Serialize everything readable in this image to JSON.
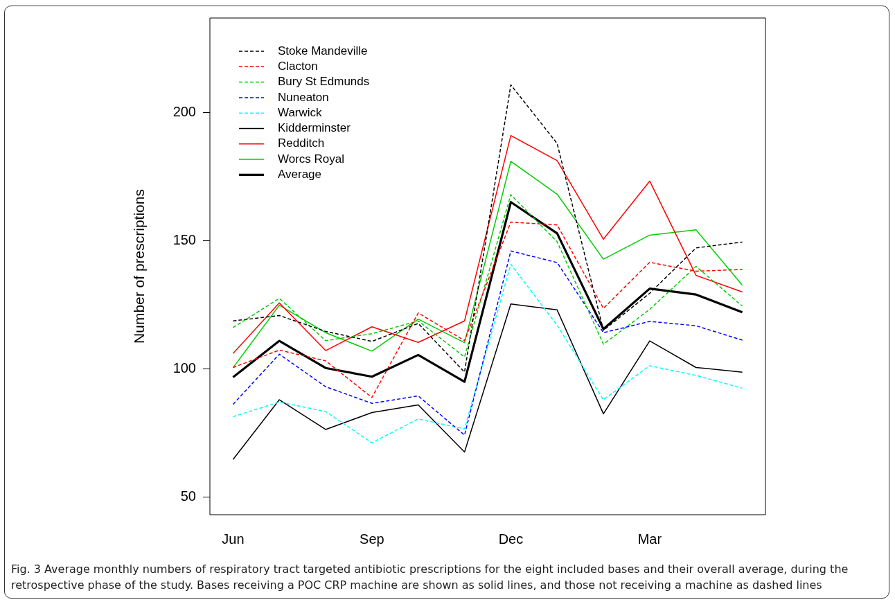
{
  "chart_data": {
    "type": "line",
    "ylabel": "Number of prescriptions",
    "categories": [
      "Jun",
      null,
      null,
      "Sep",
      null,
      null,
      "Dec",
      null,
      null,
      "Mar",
      null,
      null
    ],
    "ylim": [
      43,
      237
    ],
    "yticks": [
      50,
      100,
      150,
      200
    ],
    "grid": false,
    "legend": "top left",
    "marker": "none",
    "series": [
      {
        "name": "Stoke Mandeville",
        "color": "#000000",
        "line_style": "dashed",
        "values": [
          118.7,
          120.8,
          114.6,
          110.7,
          117.7,
          98.7,
          210.9,
          188,
          115,
          129.5,
          147.2,
          149.5
        ]
      },
      {
        "name": "Clacton",
        "color": "#ff0000",
        "line_style": "dashed",
        "values": [
          100.5,
          107.3,
          103.1,
          88.8,
          121.8,
          111,
          157.3,
          156.2,
          123.6,
          141.6,
          138.1,
          138.8
        ]
      },
      {
        "name": "Bury St Edmunds",
        "color": "#00cd00",
        "line_style": "dashed",
        "values": [
          116.1,
          127.5,
          111,
          113.7,
          118.7,
          104.6,
          168,
          149.6,
          109.6,
          123.2,
          140,
          124.5
        ]
      },
      {
        "name": "Nuneaton",
        "color": "#0000ff",
        "line_style": "dashed",
        "values": [
          86.1,
          105.7,
          93,
          86.5,
          89.4,
          74.1,
          146,
          141.5,
          114.1,
          118.5,
          116.8,
          111.2
        ]
      },
      {
        "name": "Warwick",
        "color": "#00ffff",
        "line_style": "dashed",
        "values": [
          81.3,
          87,
          83.3,
          71.1,
          80.4,
          76.5,
          140.8,
          117,
          87.9,
          101.2,
          97.4,
          92.4
        ]
      },
      {
        "name": "Kidderminster",
        "color": "#000000",
        "line_style": "solid",
        "values": [
          64.6,
          87.9,
          76.3,
          82.9,
          85.9,
          67.5,
          125.3,
          123,
          82.4,
          110.9,
          100.5,
          98.7
        ]
      },
      {
        "name": "Redditch",
        "color": "#ff0000",
        "line_style": "solid",
        "values": [
          106,
          125.7,
          107.1,
          116.4,
          110.3,
          118.7,
          191.1,
          181.3,
          150.6,
          173.3,
          136.5,
          130
        ]
      },
      {
        "name": "Worcs Royal",
        "color": "#00cd00",
        "line_style": "solid",
        "values": [
          100.4,
          124.8,
          114.1,
          106.9,
          119.4,
          110.2,
          181,
          168.2,
          142.8,
          152.2,
          154.3,
          132.6
        ]
      },
      {
        "name": "Average",
        "color": "#000000",
        "line_style": "solid",
        "values": [
          96.7,
          110.9,
          100.3,
          96.9,
          105.4,
          94.9,
          165.1,
          152.9,
          115.5,
          131.3,
          129,
          122.1
        ]
      }
    ],
    "annotations": [
      "Fig. 3 Average monthly numbers of respiratory tract targeted antibiotic prescriptions for the eight included bases and their overall average, during the retrospective phase of the study. Bases receiving a POC CRP machine are shown as solid lines, and those not receiving a machine as dashed lines"
    ]
  }
}
